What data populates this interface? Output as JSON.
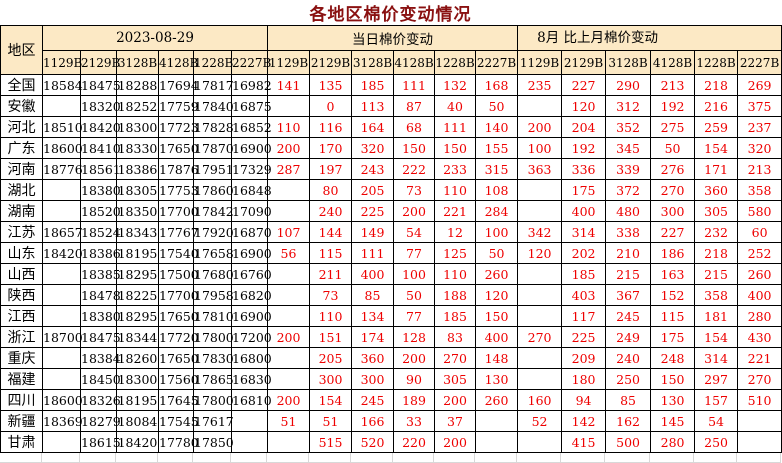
{
  "title": "各地区棉价变动情况",
  "table": {
    "region_header": "地区",
    "groups": [
      {
        "label": "2023-08-29",
        "sub": [
          "1129B",
          "2129B",
          "3128B",
          "4128B",
          "1228B",
          "2227B"
        ]
      },
      {
        "label": "当日棉价变动",
        "sub": [
          "1129B",
          "2129B",
          "3128B",
          "4128B",
          "1228B",
          "2227B"
        ]
      },
      {
        "label": "8月 比上月棉价变动",
        "sub": [
          "1129B",
          "2129B",
          "3128B",
          "4128B",
          "1228B",
          "2227B"
        ]
      }
    ],
    "rows": [
      {
        "region": "全国",
        "prices": [
          "18584",
          "18475",
          "18288",
          "17694",
          "17817",
          "16982"
        ],
        "daily_change": [
          "141",
          "135",
          "185",
          "111",
          "132",
          "168"
        ],
        "monthly_change": [
          "235",
          "227",
          "290",
          "213",
          "218",
          "269"
        ]
      },
      {
        "region": "安徽",
        "prices": [
          "",
          "18320",
          "18252",
          "17759",
          "17840",
          "16875"
        ],
        "daily_change": [
          "",
          "0",
          "113",
          "87",
          "40",
          "50"
        ],
        "monthly_change": [
          "",
          "120",
          "312",
          "192",
          "216",
          "375"
        ]
      },
      {
        "region": "河北",
        "prices": [
          "18510",
          "18420",
          "18300",
          "17723",
          "17828",
          "16852"
        ],
        "daily_change": [
          "110",
          "116",
          "164",
          "68",
          "111",
          "140"
        ],
        "monthly_change": [
          "200",
          "204",
          "352",
          "275",
          "259",
          "237"
        ]
      },
      {
        "region": "广东",
        "prices": [
          "18600",
          "18410",
          "18330",
          "17650",
          "17870",
          "16900"
        ],
        "daily_change": [
          "200",
          "170",
          "320",
          "150",
          "150",
          "155"
        ],
        "monthly_change": [
          "100",
          "192",
          "345",
          "50",
          "154",
          "320"
        ]
      },
      {
        "region": "河南",
        "prices": [
          "18776",
          "18561",
          "18386",
          "17876",
          "17951",
          "17329"
        ],
        "daily_change": [
          "287",
          "197",
          "243",
          "222",
          "233",
          "315"
        ],
        "monthly_change": [
          "363",
          "336",
          "339",
          "276",
          "171",
          "213"
        ]
      },
      {
        "region": "湖北",
        "prices": [
          "",
          "18380",
          "18305",
          "17753",
          "17860",
          "16848"
        ],
        "daily_change": [
          "",
          "80",
          "205",
          "73",
          "110",
          "108"
        ],
        "monthly_change": [
          "",
          "175",
          "372",
          "270",
          "360",
          "358"
        ]
      },
      {
        "region": "湖南",
        "prices": [
          "",
          "18520",
          "18350",
          "17700",
          "17842",
          "17090"
        ],
        "daily_change": [
          "",
          "240",
          "225",
          "200",
          "221",
          "284"
        ],
        "monthly_change": [
          "",
          "400",
          "480",
          "300",
          "305",
          "580"
        ]
      },
      {
        "region": "江苏",
        "prices": [
          "18657",
          "18524",
          "18343",
          "17767",
          "17920",
          "16870"
        ],
        "daily_change": [
          "107",
          "144",
          "149",
          "54",
          "12",
          "100"
        ],
        "monthly_change": [
          "342",
          "314",
          "338",
          "227",
          "232",
          "60"
        ]
      },
      {
        "region": "山东",
        "prices": [
          "18420",
          "18386",
          "18195",
          "17540",
          "17658",
          "16900"
        ],
        "daily_change": [
          "56",
          "115",
          "111",
          "77",
          "125",
          "50"
        ],
        "monthly_change": [
          "120",
          "202",
          "210",
          "186",
          "218",
          "252"
        ]
      },
      {
        "region": "山西",
        "prices": [
          "",
          "18385",
          "18295",
          "17500",
          "17680",
          "16760"
        ],
        "daily_change": [
          "",
          "211",
          "400",
          "100",
          "110",
          "260"
        ],
        "monthly_change": [
          "",
          "185",
          "215",
          "163",
          "215",
          "260"
        ]
      },
      {
        "region": "陕西",
        "prices": [
          "",
          "18478",
          "18225",
          "17700",
          "17958",
          "16820"
        ],
        "daily_change": [
          "",
          "73",
          "85",
          "50",
          "188",
          "120"
        ],
        "monthly_change": [
          "",
          "403",
          "367",
          "152",
          "358",
          "400"
        ]
      },
      {
        "region": "江西",
        "prices": [
          "",
          "18380",
          "18295",
          "17650",
          "17810",
          "16900"
        ],
        "daily_change": [
          "",
          "110",
          "134",
          "77",
          "185",
          "150"
        ],
        "monthly_change": [
          "",
          "117",
          "245",
          "115",
          "181",
          "280"
        ]
      },
      {
        "region": "浙江",
        "prices": [
          "18700",
          "18475",
          "18344",
          "17720",
          "17800",
          "17200"
        ],
        "daily_change": [
          "200",
          "151",
          "174",
          "128",
          "83",
          "400"
        ],
        "monthly_change": [
          "270",
          "225",
          "249",
          "175",
          "154",
          "430"
        ]
      },
      {
        "region": "重庆",
        "prices": [
          "",
          "18384",
          "18260",
          "17650",
          "17830",
          "16800"
        ],
        "daily_change": [
          "",
          "205",
          "360",
          "200",
          "270",
          "148"
        ],
        "monthly_change": [
          "",
          "209",
          "240",
          "248",
          "314",
          "221"
        ]
      },
      {
        "region": "福建",
        "prices": [
          "",
          "18450",
          "18300",
          "17560",
          "17865",
          "16830"
        ],
        "daily_change": [
          "",
          "300",
          "300",
          "90",
          "305",
          "130"
        ],
        "monthly_change": [
          "",
          "180",
          "250",
          "150",
          "297",
          "270"
        ]
      },
      {
        "region": "四川",
        "prices": [
          "18600",
          "18326",
          "18195",
          "17645",
          "17800",
          "16810"
        ],
        "daily_change": [
          "200",
          "154",
          "245",
          "189",
          "200",
          "260"
        ],
        "monthly_change": [
          "160",
          "94",
          "85",
          "130",
          "157",
          "510"
        ]
      },
      {
        "region": "新疆",
        "prices": [
          "18369",
          "18279",
          "18084",
          "17545",
          "17617",
          ""
        ],
        "daily_change": [
          "51",
          "51",
          "166",
          "33",
          "37",
          ""
        ],
        "monthly_change": [
          "52",
          "142",
          "162",
          "145",
          "54",
          ""
        ]
      },
      {
        "region": "甘肃",
        "prices": [
          "",
          "18615",
          "18420",
          "17780",
          "17850",
          ""
        ],
        "daily_change": [
          "",
          "515",
          "520",
          "220",
          "200",
          ""
        ],
        "monthly_change": [
          "",
          "415",
          "500",
          "280",
          "250",
          ""
        ]
      }
    ]
  },
  "colors": {
    "header_bg": "#fce9c5",
    "change_red": "#ee0000",
    "title_color": "#8a1111",
    "border": "#000000",
    "gridline": "#d8d8d8"
  }
}
